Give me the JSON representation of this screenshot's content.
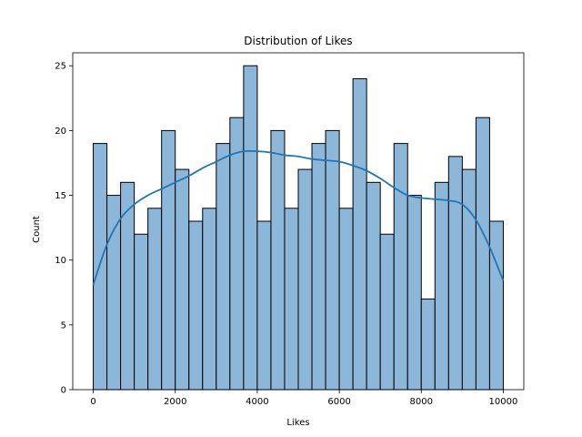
{
  "chart_data": {
    "type": "bar",
    "subtype": "histogram-with-kde",
    "title": "Distribution of Likes",
    "xlabel": "Likes",
    "ylabel": "Count",
    "xlim": [
      -500,
      10500
    ],
    "ylim": [
      0,
      26
    ],
    "xticks": [
      0,
      2000,
      4000,
      6000,
      8000,
      10000
    ],
    "yticks": [
      0,
      5,
      10,
      15,
      20,
      25
    ],
    "grid": false,
    "legend": "none",
    "bin_start": 0,
    "bin_end": 10000,
    "counts": [
      19,
      15,
      16,
      12,
      14,
      20,
      17,
      13,
      14,
      19,
      21,
      25,
      13,
      20,
      14,
      17,
      19,
      20,
      14,
      24,
      16,
      12,
      19,
      15,
      7,
      16,
      18,
      17,
      21,
      13
    ],
    "kde": {
      "x": [
        0,
        333,
        667,
        1000,
        1333,
        1667,
        2000,
        2333,
        2667,
        3000,
        3333,
        3667,
        4000,
        4333,
        4667,
        5000,
        5333,
        5667,
        6000,
        6333,
        6667,
        7000,
        7333,
        7667,
        8000,
        8333,
        8667,
        9000,
        9333,
        9667,
        10000
      ],
      "y": [
        8.1,
        11.2,
        13.2,
        14.3,
        15.0,
        15.5,
        16.0,
        16.5,
        17.1,
        17.6,
        18.1,
        18.4,
        18.4,
        18.3,
        18.1,
        18.0,
        17.8,
        17.7,
        17.6,
        17.3,
        16.9,
        16.3,
        15.6,
        15.0,
        14.8,
        14.7,
        14.6,
        14.3,
        13.1,
        11.0,
        8.4
      ]
    },
    "colors": {
      "bar_fill": "#8cb7d9",
      "bar_edge": "#000000",
      "kde_line": "#1f77b4"
    }
  }
}
